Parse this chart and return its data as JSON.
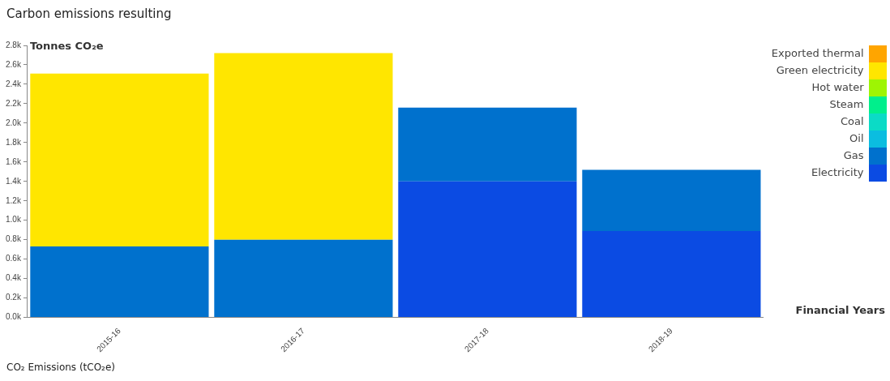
{
  "chart_data": {
    "type": "bar",
    "title": "Carbon emissions resulting",
    "ylabel": "Tonnes CO₂e",
    "xlabel": "Financial Years",
    "annotations": [
      "CO₂ Emissions (tCO₂e)"
    ],
    "categories": [
      "2015-16",
      "2016-17",
      "2017-18",
      "2018-19"
    ],
    "stacked": true,
    "legend": "top right",
    "ylim": [
      0,
      2800
    ],
    "yticks": [
      {
        "value": 0,
        "label": "0.0k"
      },
      {
        "value": 200,
        "label": "0.2k"
      },
      {
        "value": 400,
        "label": "0.4k"
      },
      {
        "value": 600,
        "label": "0.6k"
      },
      {
        "value": 800,
        "label": "0.8k"
      },
      {
        "value": 1000,
        "label": "1.0k"
      },
      {
        "value": 1200,
        "label": "1.2k"
      },
      {
        "value": 1400,
        "label": "1.4k"
      },
      {
        "value": 1600,
        "label": "1.6k"
      },
      {
        "value": 1800,
        "label": "1.8k"
      },
      {
        "value": 2000,
        "label": "2.0k"
      },
      {
        "value": 2200,
        "label": "2.2k"
      },
      {
        "value": 2400,
        "label": "2.4k"
      },
      {
        "value": 2600,
        "label": "2.6k"
      },
      {
        "value": 2800,
        "label": "2.8k"
      }
    ],
    "series": [
      {
        "name": "Electricity",
        "color": "#0b4be3",
        "values": [
          0,
          0,
          1400,
          890
        ]
      },
      {
        "name": "Gas",
        "color": "#0071cd",
        "values": [
          730,
          800,
          760,
          630
        ]
      },
      {
        "name": "Oil",
        "color": "#0bbde0",
        "values": [
          0,
          0,
          0,
          0
        ]
      },
      {
        "name": "Coal",
        "color": "#0bdbc6",
        "values": [
          0,
          0,
          0,
          0
        ]
      },
      {
        "name": "Steam",
        "color": "#00ef8c",
        "values": [
          0,
          0,
          0,
          0
        ]
      },
      {
        "name": "Hot water",
        "color": "#9ef503",
        "values": [
          0,
          0,
          0,
          0
        ]
      },
      {
        "name": "Green electricity",
        "color": "#ffe600",
        "values": [
          1780,
          1920,
          0,
          0
        ]
      },
      {
        "name": "Exported thermal",
        "color": "#ffa500",
        "values": [
          0,
          0,
          0,
          0
        ]
      }
    ]
  }
}
